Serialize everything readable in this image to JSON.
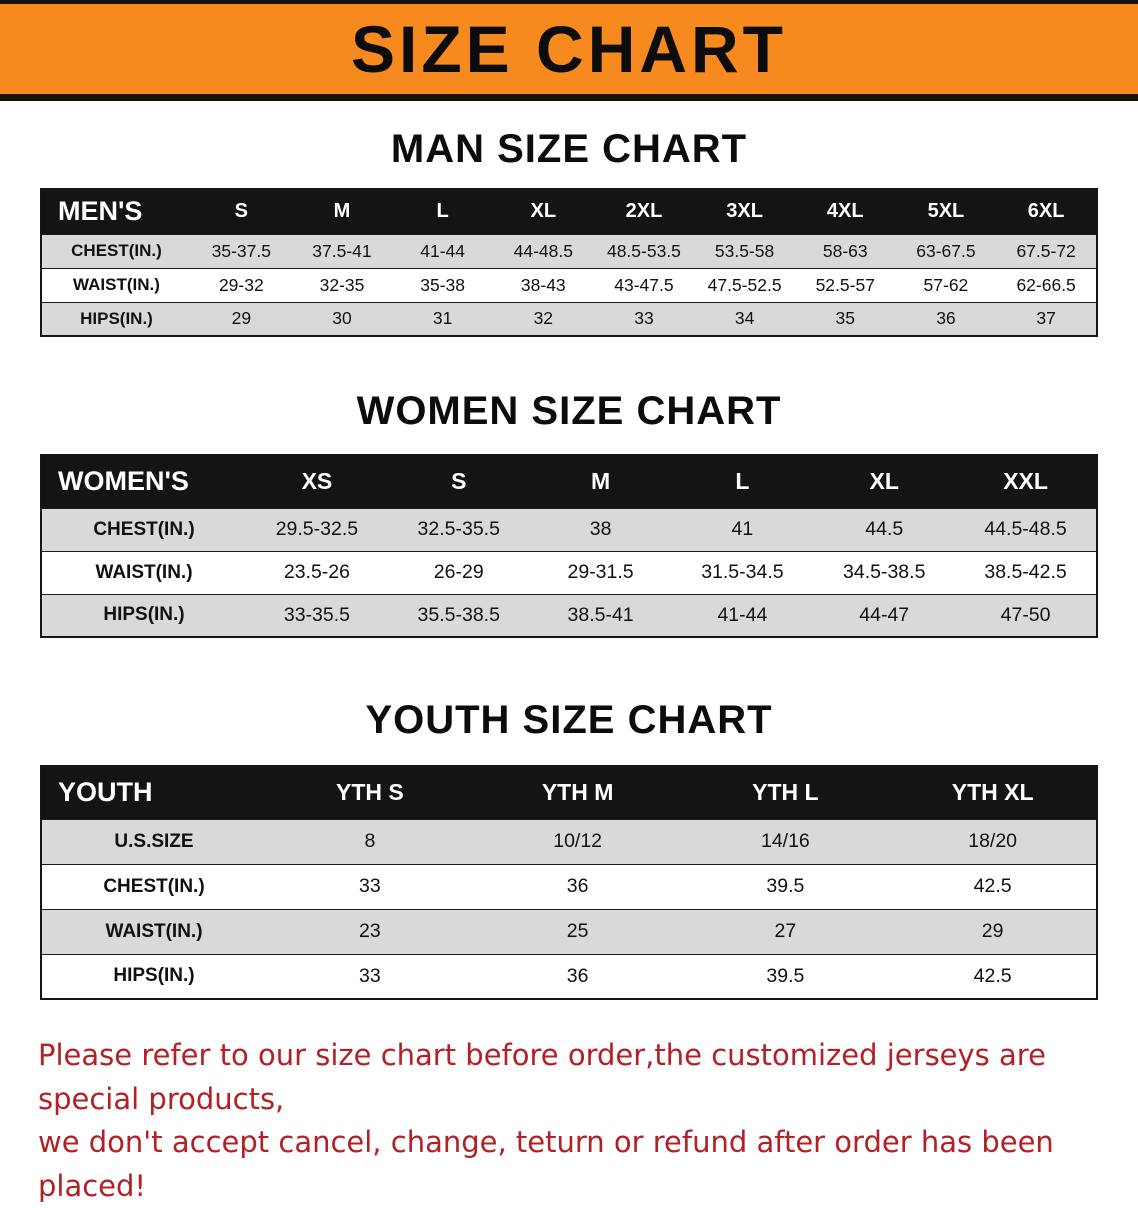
{
  "colors": {
    "banner-bg": "#f68a1e",
    "banner-border": "#19120a",
    "table-header-bg": "#141414",
    "row-alt-bg": "#d9d9d9",
    "disclaimer-color": "#b32025"
  },
  "banner": {
    "title": "SIZE CHART"
  },
  "sections": [
    {
      "id": "men",
      "heading": "MAN SIZE CHART",
      "table": {
        "header": [
          "MEN'S",
          "S",
          "M",
          "L",
          "XL",
          "2XL",
          "3XL",
          "4XL",
          "5XL",
          "6XL"
        ],
        "rows": [
          [
            "CHEST(IN.)",
            "35-37.5",
            "37.5-41",
            "41-44",
            "44-48.5",
            "48.5-53.5",
            "53.5-58",
            "58-63",
            "63-67.5",
            "67.5-72"
          ],
          [
            "WAIST(IN.)",
            "29-32",
            "32-35",
            "35-38",
            "38-43",
            "43-47.5",
            "47.5-52.5",
            "52.5-57",
            "57-62",
            "62-66.5"
          ],
          [
            "HIPS(IN.)",
            "29",
            "30",
            "31",
            "32",
            "33",
            "34",
            "35",
            "36",
            "37"
          ]
        ]
      }
    },
    {
      "id": "women",
      "heading": "WOMEN SIZE CHART",
      "table": {
        "header": [
          "WOMEN'S",
          "XS",
          "S",
          "M",
          "L",
          "XL",
          "XXL"
        ],
        "rows": [
          [
            "CHEST(IN.)",
            "29.5-32.5",
            "32.5-35.5",
            "38",
            "41",
            "44.5",
            "44.5-48.5"
          ],
          [
            "WAIST(IN.)",
            "23.5-26",
            "26-29",
            "29-31.5",
            "31.5-34.5",
            "34.5-38.5",
            "38.5-42.5"
          ],
          [
            "HIPS(IN.)",
            "33-35.5",
            "35.5-38.5",
            "38.5-41",
            "41-44",
            "44-47",
            "47-50"
          ]
        ]
      }
    },
    {
      "id": "youth",
      "heading": "YOUTH SIZE CHART",
      "table": {
        "header": [
          "YOUTH",
          "YTH S",
          "YTH M",
          "YTH L",
          "YTH XL"
        ],
        "rows": [
          [
            "U.S.SIZE",
            "8",
            "10/12",
            "14/16",
            "18/20"
          ],
          [
            "CHEST(IN.)",
            "33",
            "36",
            "39.5",
            "42.5"
          ],
          [
            "WAIST(IN.)",
            "23",
            "25",
            "27",
            "29"
          ],
          [
            "HIPS(IN.)",
            "33",
            "36",
            "39.5",
            "42.5"
          ]
        ]
      }
    }
  ],
  "disclaimer": {
    "line1": "Please refer to our size chart before order,the customized jerseys are special products,",
    "line2": "we don't accept cancel, change, teturn or refund after order has been placed!"
  }
}
